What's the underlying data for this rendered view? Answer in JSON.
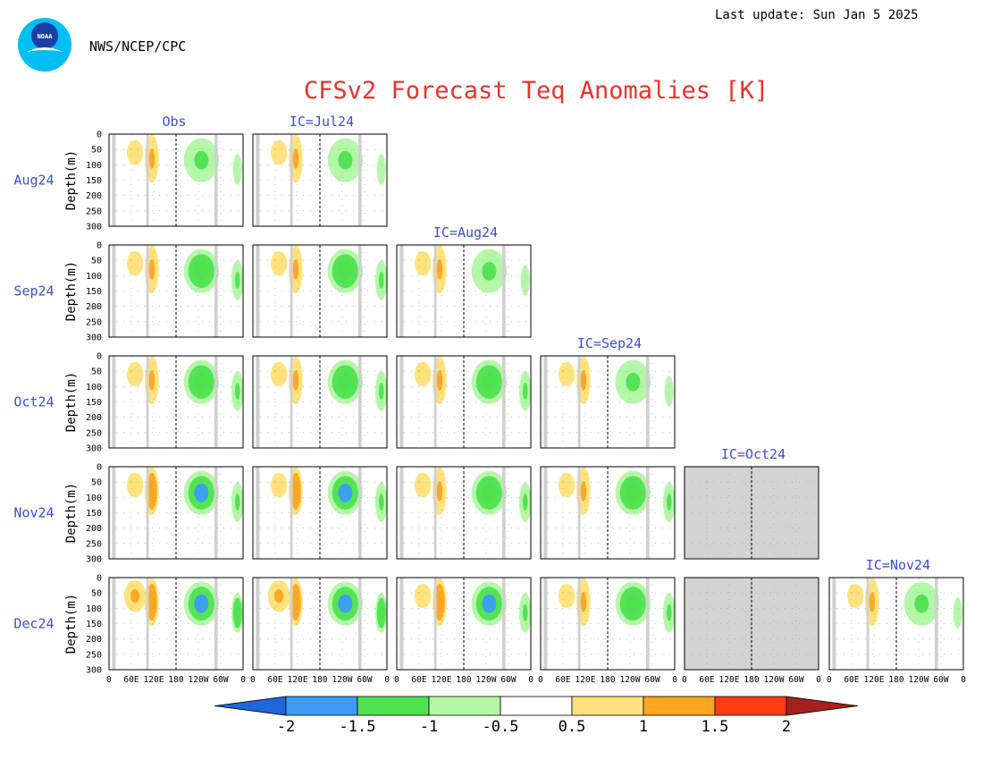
{
  "header": {
    "logo_text": "NOAA",
    "agency": "NWS/NCEP/CPC",
    "last_update": "Last update: Sun Jan 5 2025",
    "title": "CFSv2 Forecast Teq Anomalies [K]"
  },
  "colors": {
    "title": "#e8332e",
    "label": "#3a4fd1",
    "land": "#d0d0d0",
    "missing": "#d3d3d3",
    "frame": "#000000"
  },
  "chart_data": {
    "type": "heatmap",
    "title": "CFSv2 Forecast Teq Anomalies [K]",
    "column_titles": [
      "Obs",
      "IC=Jul24",
      "IC=Aug24",
      "IC=Sep24",
      "IC=Oct24",
      "IC=Nov24"
    ],
    "row_labels": [
      "Aug24",
      "Sep24",
      "Oct24",
      "Nov24",
      "Dec24"
    ],
    "ylabel": "Depth(m)",
    "y_ticks": [
      "0",
      "50",
      "100",
      "150",
      "200",
      "250",
      "300"
    ],
    "y_range": [
      0,
      300
    ],
    "x_ticks": [
      "0",
      "60E",
      "120E",
      "180",
      "120W",
      "60W",
      "0"
    ],
    "x_tick_degrees": [
      0,
      60,
      120,
      180,
      240,
      300,
      360
    ],
    "dateline_degree": 180,
    "land_bands_degrees": [
      [
        8,
        18
      ],
      [
        100,
        107
      ],
      [
        283,
        292
      ]
    ],
    "grid": "dotted",
    "missing_panels": [
      [
        "Nov24",
        "IC=Oct24"
      ],
      [
        "Dec24",
        "IC=Oct24"
      ]
    ],
    "colorbar": {
      "labels": [
        "-2",
        "-1.5",
        "-1",
        "-0.5",
        "0.5",
        "1",
        "1.5",
        "2"
      ],
      "colors": [
        "#1f66d9",
        "#3c9cf5",
        "#4fe24f",
        "#b2f7a5",
        "#ffffff",
        "#ffe27a",
        "#ffa51f",
        "#ff3b12",
        "#a6211d"
      ]
    },
    "anomaly_features": [
      {
        "lon": 70,
        "depth": 60,
        "w": 22,
        "h": 40,
        "value": 0.7
      },
      {
        "lon": 115,
        "depth": 80,
        "w": 14,
        "h": 60,
        "value": 1.0
      },
      {
        "lon": 248,
        "depth": 85,
        "w": 35,
        "h": 55,
        "value": -1.2
      },
      {
        "lon": 345,
        "depth": 115,
        "w": 12,
        "h": 50,
        "value": -0.9
      }
    ]
  }
}
